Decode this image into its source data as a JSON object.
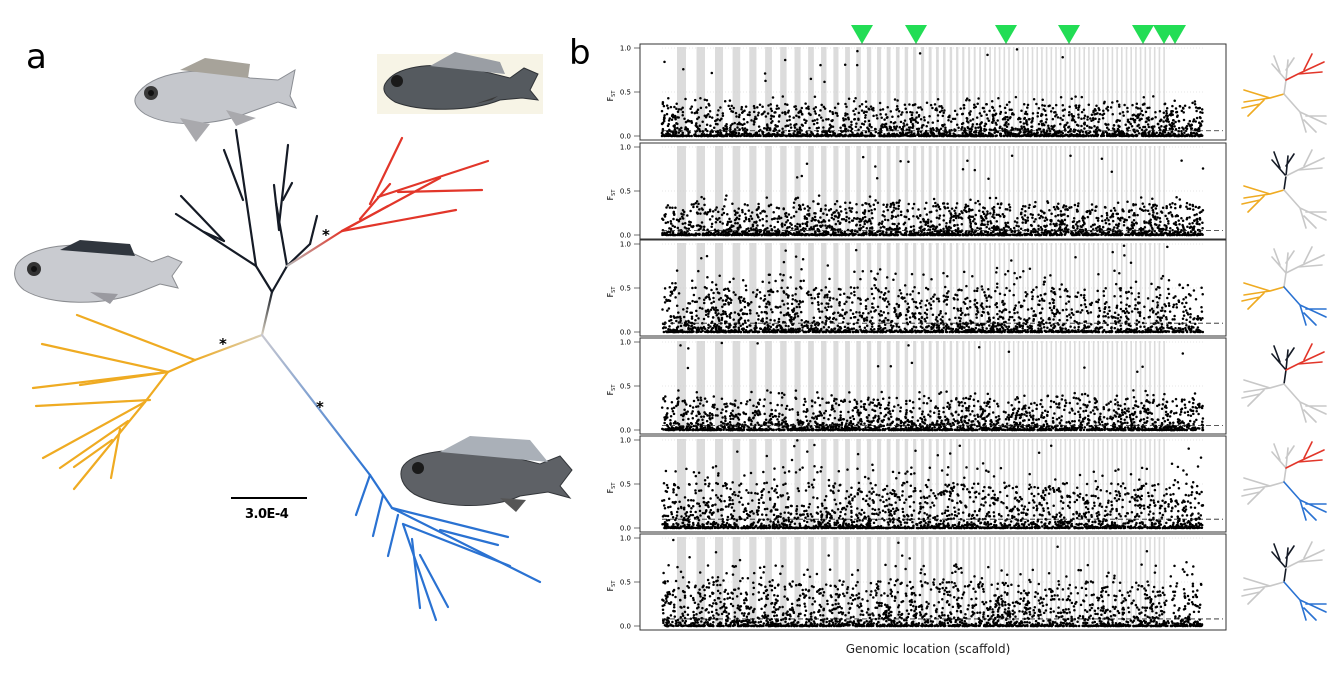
{
  "panel_a": {
    "letter": "a",
    "scale_bar_label": "3.0E-4",
    "asterisk": "*",
    "colors": {
      "black": "#151b26",
      "red": "#e2362a",
      "orange": "#efab22",
      "blue": "#2a72d2",
      "grey": "#c8c8c8"
    }
  },
  "panel_b": {
    "letter": "b",
    "xlabel": "Genomic location (scaffold)",
    "ylabel_main": "F",
    "ylabel_sub": "ST",
    "yticks": [
      "1.0",
      "0.5",
      "0.0"
    ],
    "marker_color": "#22dd55",
    "marker_count": 7
  },
  "chart_data": {
    "type": "scatter",
    "title": "",
    "xlabel": "Genomic location (scaffold)",
    "ylabel": "FST",
    "ylim": [
      0,
      1
    ],
    "yticks": [
      0.0,
      0.5,
      1.0
    ],
    "grid": true,
    "series": [
      {
        "threshold": 0.06,
        "max_fst": 1.0
      },
      {
        "threshold": 0.05,
        "max_fst": 0.9
      },
      {
        "threshold": 0.1,
        "max_fst": 1.0
      },
      {
        "threshold": 0.05,
        "max_fst": 1.0
      },
      {
        "threshold": 0.1,
        "max_fst": 1.0
      },
      {
        "threshold": 0.08,
        "max_fst": 1.0
      }
    ]
  }
}
